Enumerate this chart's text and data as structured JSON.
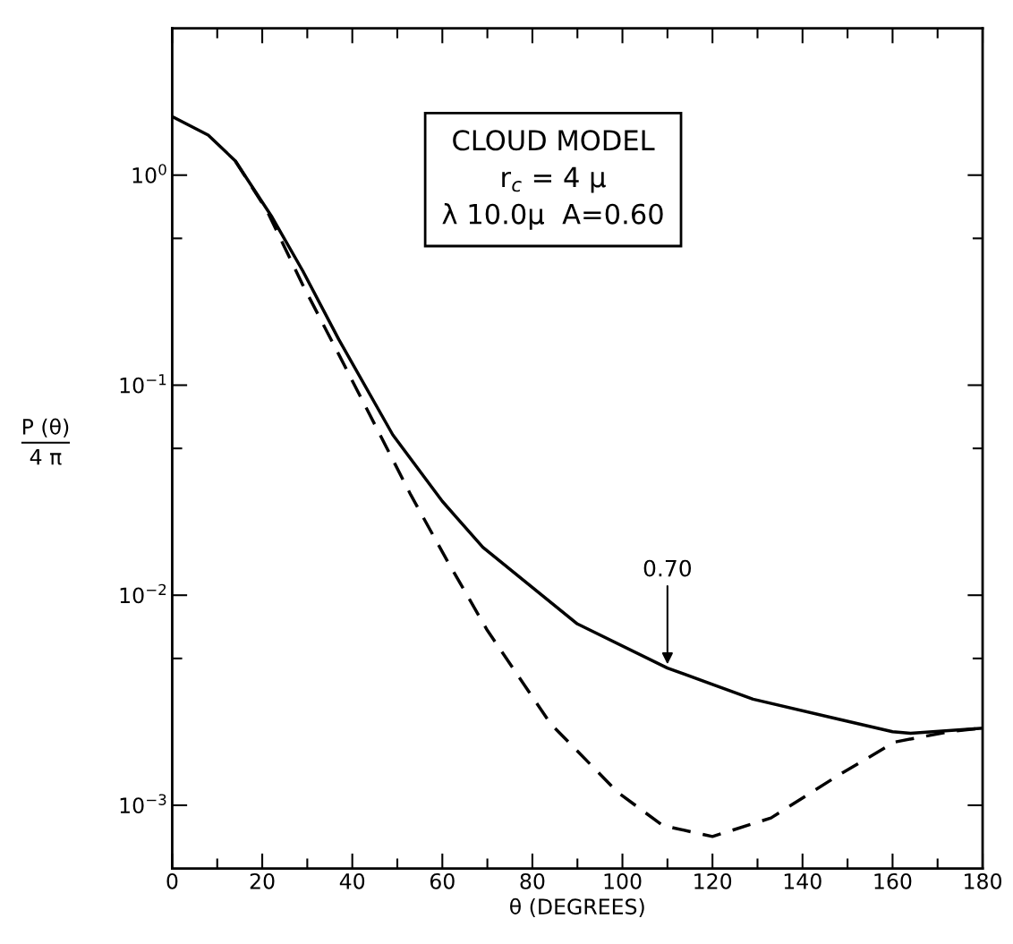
{
  "chart_data": {
    "type": "line",
    "xlabel": "θ (DEGREES)",
    "ylabel": "P (θ)\n4 π",
    "log": "y",
    "xlim": [
      0,
      180
    ],
    "ylim": [
      0.0005,
      5
    ],
    "xticks": [
      0,
      {
        "value": 10,
        "label": null
      },
      20,
      {
        "value": 30,
        "label": null
      },
      40,
      {
        "value": 50,
        "label": null
      },
      60,
      {
        "value": 70,
        "label": null
      },
      80,
      {
        "value": 90,
        "label": null
      },
      100,
      {
        "value": 110,
        "label": null
      },
      120,
      {
        "value": 130,
        "label": null
      },
      140,
      {
        "value": 150,
        "label": null
      },
      160,
      {
        "value": 170,
        "label": null
      },
      180
    ],
    "yticks": [
      {
        "value": 0.001,
        "label": "10$^{−3}$"
      },
      {
        "value": 0.005,
        "label": null
      },
      {
        "value": 0.01,
        "label": "10$^{−2}$"
      },
      {
        "value": 0.05,
        "label": null
      },
      {
        "value": 0.1,
        "label": "10$^{−1}$"
      },
      {
        "value": 0.5,
        "label": null
      },
      {
        "value": 1,
        "label": "10$^{0}$"
      }
    ],
    "grid": false,
    "marker": "none",
    "series": [
      {
        "color": "#000000",
        "line_style": "solid",
        "x": [
          0,
          8,
          14,
          22,
          29,
          37,
          49,
          60,
          69,
          90,
          110,
          129,
          148,
          160,
          164,
          180
        ],
        "values": [
          1.9,
          1.55,
          1.17,
          0.64,
          0.35,
          0.165,
          0.058,
          0.028,
          0.0169,
          0.0073,
          0.0045,
          0.0032,
          0.00257,
          0.00224,
          0.0022,
          0.00233
        ]
      },
      {
        "color": "#000000",
        "line_style": "dashed",
        "x": [
          14,
          21,
          29,
          37,
          46,
          53,
          61,
          70,
          84,
          99,
          109,
          120,
          133,
          148,
          160.5,
          172.6,
          180
        ],
        "values": [
          1.17,
          0.68,
          0.3,
          0.14,
          0.059,
          0.03,
          0.0147,
          0.0068,
          0.00245,
          0.00115,
          0.0008,
          0.00071,
          0.00087,
          0.00139,
          0.002,
          0.00224,
          0.00233
        ]
      }
    ],
    "annotations": [
      "CLOUD MODEL\nr$_{c}$ = 4 μ\nλ 10.0μ  A=0.60",
      {
        "text": "0.70",
        "x": 110,
        "y": 0.0045
      }
    ]
  }
}
